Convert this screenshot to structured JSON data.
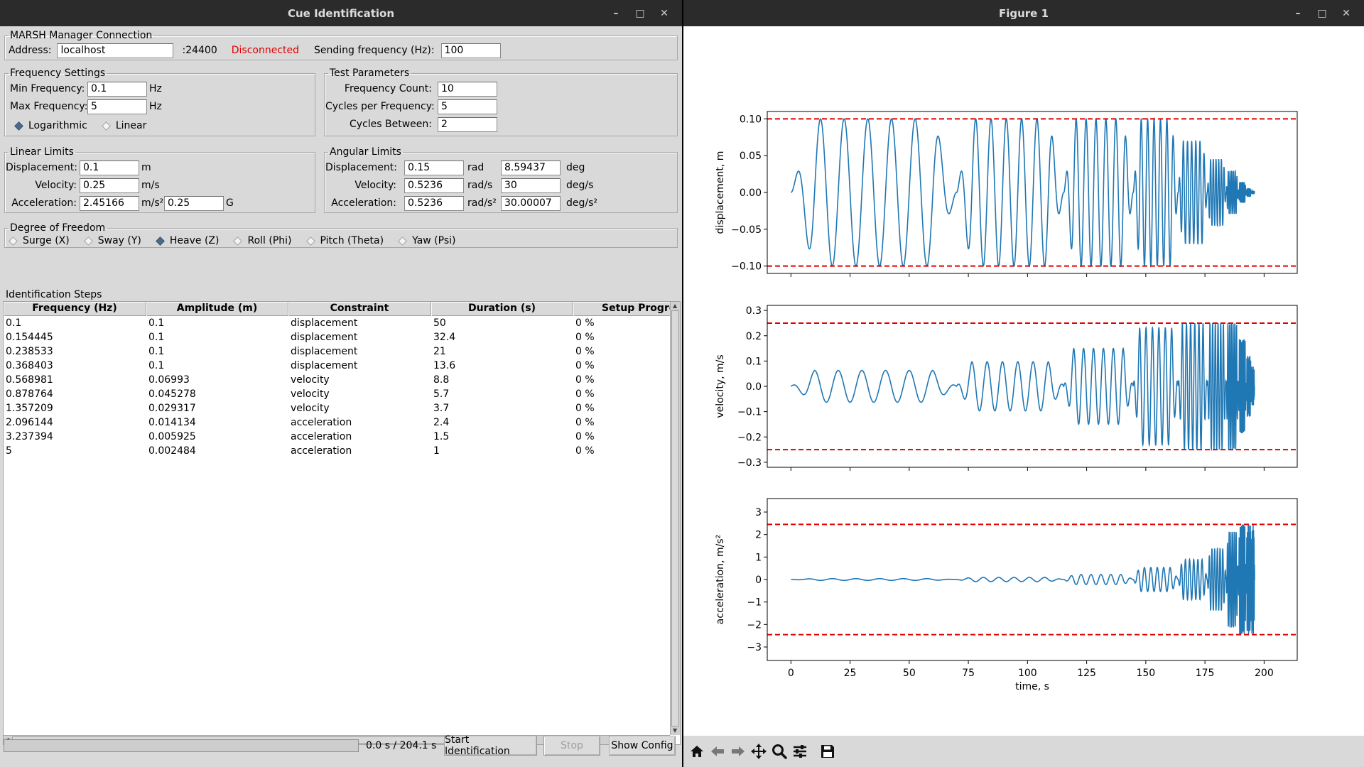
{
  "cue_window": {
    "title": "Cue Identification",
    "minimize": "–",
    "maximize": "□",
    "close": "✕"
  },
  "figure_window": {
    "title": "Figure 1",
    "minimize": "–",
    "maximize": "□",
    "close": "✕"
  },
  "connection": {
    "legend": "MARSH Manager Connection",
    "address_label": "Address:",
    "address_value": "localhost",
    "port": ":24400",
    "status": "Disconnected",
    "status_color": "#e00000",
    "freq_label": "Sending frequency (Hz):",
    "freq_value": "100"
  },
  "frequency_settings": {
    "legend": "Frequency Settings",
    "min_label": "Min Frequency:",
    "min_value": "0.1",
    "min_unit": "Hz",
    "max_label": "Max Frequency:",
    "max_value": "5",
    "max_unit": "Hz",
    "log_label": "Logarithmic",
    "lin_label": "Linear",
    "selected": "Logarithmic"
  },
  "test_parameters": {
    "legend": "Test Parameters",
    "count_label": "Frequency Count:",
    "count_value": "10",
    "cycles_label": "Cycles per Frequency:",
    "cycles_value": "5",
    "between_label": "Cycles Between:",
    "between_value": "2"
  },
  "linear_limits": {
    "legend": "Linear Limits",
    "disp_label": "Displacement:",
    "disp_value": "0.1",
    "disp_unit": "m",
    "vel_label": "Velocity:",
    "vel_value": "0.25",
    "vel_unit": "m/s",
    "acc_label": "Acceleration:",
    "acc_value": "2.45166",
    "acc_unit": "m/s²",
    "acc_g_value": "0.25",
    "acc_g_unit": "G"
  },
  "angular_limits": {
    "legend": "Angular Limits",
    "disp_label": "Displacement:",
    "disp_value": "0.15",
    "disp_unit": "rad",
    "disp_deg_value": "8.59437",
    "disp_deg_unit": "deg",
    "vel_label": "Velocity:",
    "vel_value": "0.5236",
    "vel_unit": "rad/s",
    "vel_deg_value": "30",
    "vel_deg_unit": "deg/s",
    "acc_label": "Acceleration:",
    "acc_value": "0.5236",
    "acc_unit": "rad/s²",
    "acc_deg_value": "30.00007",
    "acc_deg_unit": "deg/s²"
  },
  "dof": {
    "legend": "Degree of Freedom",
    "options": [
      "Surge (X)",
      "Sway (Y)",
      "Heave (Z)",
      "Roll (Phi)",
      "Pitch (Theta)",
      "Yaw (Psi)"
    ],
    "selected": "Heave (Z)"
  },
  "steps": {
    "label": "Identification Steps",
    "columns": [
      "Frequency (Hz)",
      "Amplitude (m)",
      "Constraint",
      "Duration (s)",
      "Setup Progre"
    ],
    "rows": [
      [
        "0.1",
        "0.1",
        "displacement",
        "50",
        "0 %"
      ],
      [
        "0.154445",
        "0.1",
        "displacement",
        "32.4",
        "0 %"
      ],
      [
        "0.238533",
        "0.1",
        "displacement",
        "21",
        "0 %"
      ],
      [
        "0.368403",
        "0.1",
        "displacement",
        "13.6",
        "0 %"
      ],
      [
        "0.568981",
        "0.06993",
        "velocity",
        "8.8",
        "0 %"
      ],
      [
        "0.878764",
        "0.045278",
        "velocity",
        "5.7",
        "0 %"
      ],
      [
        "1.357209",
        "0.029317",
        "velocity",
        "3.7",
        "0 %"
      ],
      [
        "2.096144",
        "0.014134",
        "acceleration",
        "2.4",
        "0 %"
      ],
      [
        "3.237394",
        "0.005925",
        "acceleration",
        "1.5",
        "0 %"
      ],
      [
        "5",
        "0.002484",
        "acceleration",
        "1",
        "0 %"
      ]
    ]
  },
  "footer": {
    "progress": 0,
    "time": "0.0 s / 204.1 s",
    "start_label": "Start Identification",
    "stop_label": "Stop",
    "config_label": "Show Config"
  },
  "toolbar": {
    "icons": [
      "home-icon",
      "back-arrow-icon",
      "forward-arrow-icon",
      "pan-icon",
      "zoom-icon",
      "configure-subplots-icon",
      "save-icon"
    ]
  },
  "chart_data": [
    {
      "type": "line",
      "title": "",
      "xlabel": "",
      "ylabel": "displacement, m",
      "xlim": [
        -10,
        214
      ],
      "ylim": [
        -0.11,
        0.11
      ],
      "yticks": [
        -0.1,
        -0.05,
        0.0,
        0.05,
        0.1
      ],
      "ytick_labels": [
        "−0.10",
        "−0.05",
        "0.00",
        "0.05",
        "0.10"
      ],
      "limit_lines": [
        0.1,
        -0.1
      ],
      "limit_color": "#e00000",
      "series_color": "#1f77b4"
    },
    {
      "type": "line",
      "title": "",
      "xlabel": "",
      "ylabel": "velocity, m/s",
      "xlim": [
        -10,
        214
      ],
      "ylim": [
        -0.32,
        0.32
      ],
      "yticks": [
        -0.3,
        -0.2,
        -0.1,
        0.0,
        0.1,
        0.2,
        0.3
      ],
      "ytick_labels": [
        "−0.3",
        "−0.2",
        "−0.1",
        "0.0",
        "0.1",
        "0.2",
        "0.3"
      ],
      "limit_lines": [
        0.25,
        -0.25
      ],
      "limit_color": "#e00000",
      "series_color": "#1f77b4"
    },
    {
      "type": "line",
      "title": "",
      "xlabel": "time, s",
      "ylabel": "acceleration, m/s²",
      "xlim": [
        -10,
        214
      ],
      "ylim": [
        -3.6,
        3.6
      ],
      "yticks": [
        -3,
        -2,
        -1,
        0,
        1,
        2,
        3
      ],
      "ytick_labels": [
        "−3",
        "−2",
        "−1",
        "0",
        "1",
        "2",
        "3"
      ],
      "xticks": [
        0,
        25,
        50,
        75,
        100,
        125,
        150,
        175,
        200
      ],
      "xtick_labels": [
        "0",
        "25",
        "50",
        "75",
        "100",
        "125",
        "150",
        "175",
        "200"
      ],
      "limit_lines": [
        2.45166,
        -2.45166
      ],
      "limit_color": "#e00000",
      "series_color": "#1f77b4"
    }
  ]
}
